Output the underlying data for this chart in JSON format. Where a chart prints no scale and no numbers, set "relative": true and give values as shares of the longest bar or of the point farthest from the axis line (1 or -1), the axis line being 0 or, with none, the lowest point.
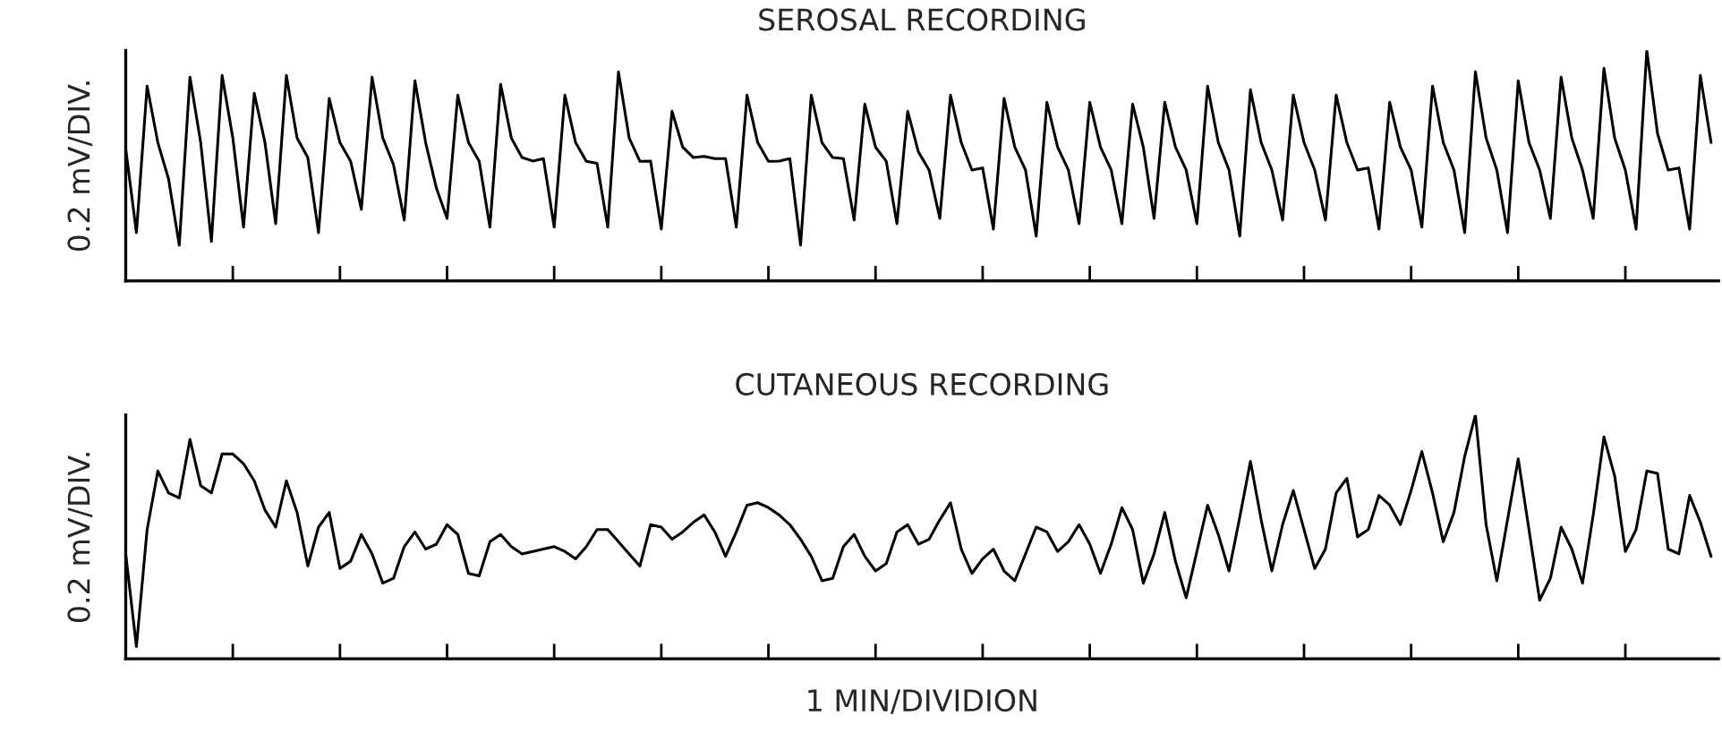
{
  "chart_data": [
    {
      "type": "line",
      "title": "SEROSAL RECORDING",
      "ylabel": "0.2 mV/DIV.",
      "relative": true,
      "tick_labels": false,
      "grid": false,
      "categories": [
        null,
        null,
        null,
        null,
        null,
        null,
        null,
        null,
        null,
        null,
        null,
        null,
        null,
        null,
        null,
        null,
        null,
        null,
        null,
        null,
        null,
        null,
        null,
        null,
        null,
        null,
        null,
        null,
        null,
        null,
        null,
        null,
        null,
        null,
        null,
        null,
        null,
        null,
        null,
        null,
        null,
        null,
        null,
        null,
        null,
        null,
        null,
        null,
        null,
        null,
        null,
        null,
        null,
        null,
        null,
        null,
        null,
        null,
        null,
        null,
        null,
        null,
        null,
        null,
        null,
        null,
        null,
        null,
        null,
        null,
        null,
        null,
        null,
        null,
        null,
        null,
        null,
        null,
        null,
        null,
        null,
        null,
        null,
        null,
        null,
        null,
        null,
        null,
        null,
        null,
        null,
        null,
        null,
        null,
        null,
        null,
        null,
        null,
        null,
        null,
        null,
        null,
        null,
        null,
        null,
        null,
        null,
        null,
        null,
        null,
        null,
        null,
        null,
        null,
        null,
        null,
        null,
        null,
        null,
        null,
        null,
        null,
        null,
        null,
        null,
        null,
        null,
        null,
        null,
        null,
        null,
        null,
        null,
        null,
        null,
        null,
        null,
        null,
        null,
        null,
        null,
        null,
        null,
        null,
        null,
        null,
        null,
        null,
        null
      ],
      "series": [
        {
          "color": "#000000",
          "values": [
            0.574,
            0.209,
            0.845,
            0.6,
            0.442,
            0.155,
            0.884,
            0.6,
            0.171,
            0.891,
            0.62,
            0.233,
            0.814,
            0.6,
            0.248,
            0.891,
            0.62,
            0.535,
            0.209,
            0.791,
            0.6,
            0.519,
            0.31,
            0.884,
            0.62,
            0.504,
            0.264,
            0.868,
            0.6,
            0.403,
            0.271,
            0.806,
            0.6,
            0.519,
            0.233,
            0.853,
            0.62,
            0.535,
            0.52,
            0.53,
            0.233,
            0.806,
            0.6,
            0.519,
            0.51,
            0.233,
            0.907,
            0.62,
            0.519,
            0.52,
            0.225,
            0.736,
            0.58,
            0.535,
            0.54,
            0.53,
            0.53,
            0.233,
            0.806,
            0.6,
            0.519,
            0.52,
            0.53,
            0.155,
            0.806,
            0.6,
            0.535,
            0.53,
            0.264,
            0.767,
            0.58,
            0.519,
            0.248,
            0.736,
            0.56,
            0.481,
            0.271,
            0.806,
            0.6,
            0.481,
            0.49,
            0.225,
            0.791,
            0.58,
            0.481,
            0.194,
            0.775,
            0.58,
            0.481,
            0.248,
            0.775,
            0.58,
            0.481,
            0.248,
            0.767,
            0.58,
            0.271,
            0.775,
            0.58,
            0.481,
            0.248,
            0.845,
            0.6,
            0.481,
            0.194,
            0.829,
            0.6,
            0.481,
            0.264,
            0.806,
            0.6,
            0.481,
            0.264,
            0.806,
            0.6,
            0.481,
            0.49,
            0.225,
            0.775,
            0.58,
            0.481,
            0.233,
            0.845,
            0.6,
            0.481,
            0.209,
            0.907,
            0.62,
            0.481,
            0.209,
            0.868,
            0.6,
            0.481,
            0.271,
            0.884,
            0.62,
            0.481,
            0.271,
            0.922,
            0.62,
            0.481,
            0.225,
            1.0,
            0.64,
            0.481,
            0.49,
            0.225,
            0.891,
            0.6
          ]
        }
      ]
    },
    {
      "type": "line",
      "title": "CUTANEOUS RECORDING",
      "ylabel": "0.2 mV/DIV.",
      "xlabel": "1 MIN/DIVIDION",
      "relative": true,
      "tick_labels": false,
      "grid": false,
      "categories": [
        null,
        null,
        null,
        null,
        null,
        null,
        null,
        null,
        null,
        null,
        null,
        null,
        null,
        null,
        null,
        null,
        null,
        null,
        null,
        null,
        null,
        null,
        null,
        null,
        null,
        null,
        null,
        null,
        null,
        null,
        null,
        null,
        null,
        null,
        null,
        null,
        null,
        null,
        null,
        null,
        null,
        null,
        null,
        null,
        null,
        null,
        null,
        null,
        null,
        null,
        null,
        null,
        null,
        null,
        null,
        null,
        null,
        null,
        null,
        null,
        null,
        null,
        null,
        null,
        null,
        null,
        null,
        null,
        null,
        null,
        null,
        null,
        null,
        null,
        null,
        null,
        null,
        null,
        null,
        null,
        null,
        null,
        null,
        null,
        null,
        null,
        null,
        null,
        null,
        null,
        null,
        null,
        null,
        null,
        null,
        null,
        null,
        null,
        null,
        null,
        null,
        null,
        null,
        null,
        null,
        null,
        null,
        null,
        null,
        null,
        null,
        null,
        null,
        null,
        null,
        null,
        null,
        null,
        null,
        null,
        null,
        null,
        null,
        null,
        null,
        null,
        null,
        null,
        null,
        null,
        null,
        null,
        null,
        null,
        null,
        null,
        null,
        null,
        null,
        null,
        null,
        null,
        null,
        null,
        null,
        null,
        null,
        null,
        null
      ],
      "series": [
        {
          "color": "#000000",
          "values": [
            0.43,
            0.05,
            0.53,
            0.77,
            0.68,
            0.66,
            0.9,
            0.71,
            0.68,
            0.84,
            0.84,
            0.8,
            0.73,
            0.61,
            0.54,
            0.73,
            0.6,
            0.38,
            0.54,
            0.6,
            0.37,
            0.4,
            0.51,
            0.43,
            0.31,
            0.33,
            0.46,
            0.52,
            0.45,
            0.47,
            0.55,
            0.51,
            0.35,
            0.34,
            0.48,
            0.51,
            0.46,
            0.43,
            0.44,
            0.45,
            0.46,
            0.44,
            0.41,
            0.46,
            0.53,
            0.53,
            0.48,
            0.43,
            0.38,
            0.55,
            0.54,
            0.49,
            0.52,
            0.56,
            0.59,
            0.52,
            0.42,
            0.52,
            0.63,
            0.64,
            0.62,
            0.59,
            0.55,
            0.49,
            0.42,
            0.32,
            0.33,
            0.46,
            0.51,
            0.42,
            0.36,
            0.39,
            0.52,
            0.55,
            0.47,
            0.49,
            0.57,
            0.64,
            0.45,
            0.35,
            0.41,
            0.45,
            0.36,
            0.32,
            0.43,
            0.54,
            0.52,
            0.44,
            0.48,
            0.55,
            0.47,
            0.35,
            0.47,
            0.62,
            0.53,
            0.31,
            0.43,
            0.6,
            0.4,
            0.25,
            0.44,
            0.63,
            0.51,
            0.36,
            0.58,
            0.81,
            0.57,
            0.36,
            0.55,
            0.69,
            0.53,
            0.37,
            0.45,
            0.68,
            0.74,
            0.5,
            0.53,
            0.67,
            0.63,
            0.55,
            0.69,
            0.85,
            0.68,
            0.48,
            0.6,
            0.83,
            1.0,
            0.55,
            0.32,
            0.57,
            0.82,
            0.53,
            0.24,
            0.33,
            0.54,
            0.45,
            0.31,
            0.59,
            0.91,
            0.75,
            0.44,
            0.53,
            0.77,
            0.76,
            0.45,
            0.43,
            0.67,
            0.56,
            0.42
          ]
        }
      ]
    }
  ]
}
